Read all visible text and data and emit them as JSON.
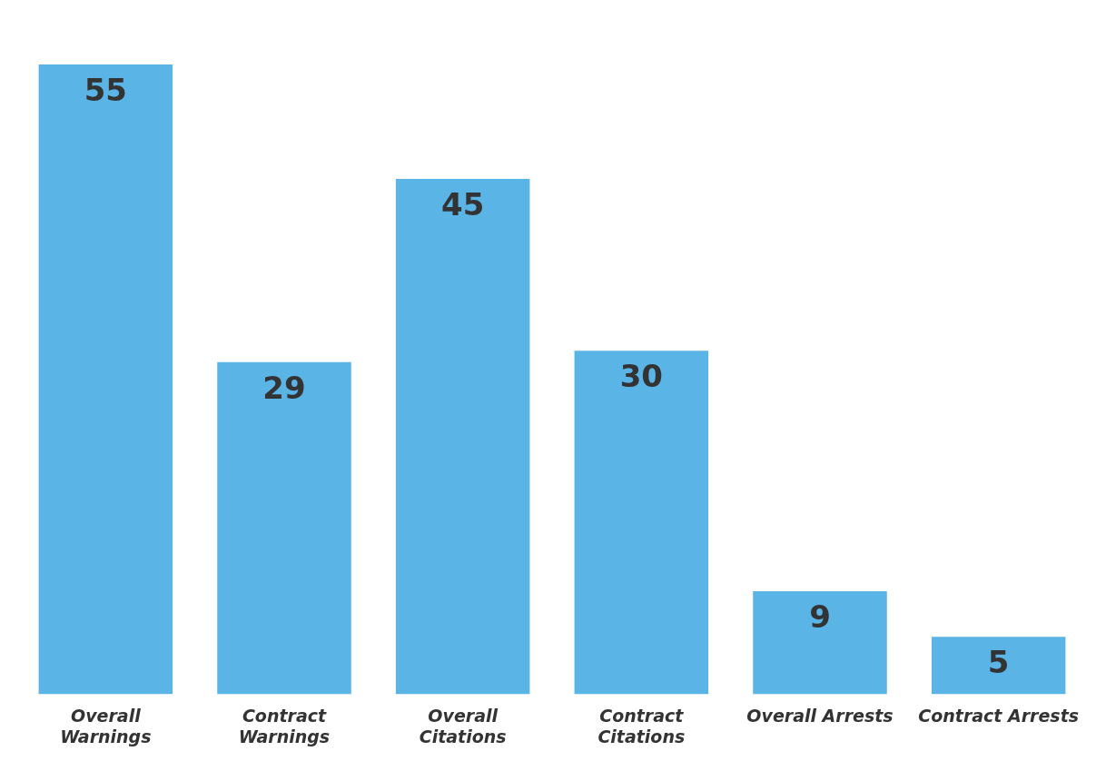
{
  "chart_data": {
    "type": "bar",
    "categories": [
      "Overall Warnings",
      "Contract Warnings",
      "Overall Citations",
      "Contract Citations",
      "Overall Arrests",
      "Contract Arrests"
    ],
    "values": [
      55,
      29,
      45,
      30,
      9,
      5
    ],
    "color": "#5ab4e6",
    "data_labels": true,
    "grid": false,
    "legend": false
  }
}
